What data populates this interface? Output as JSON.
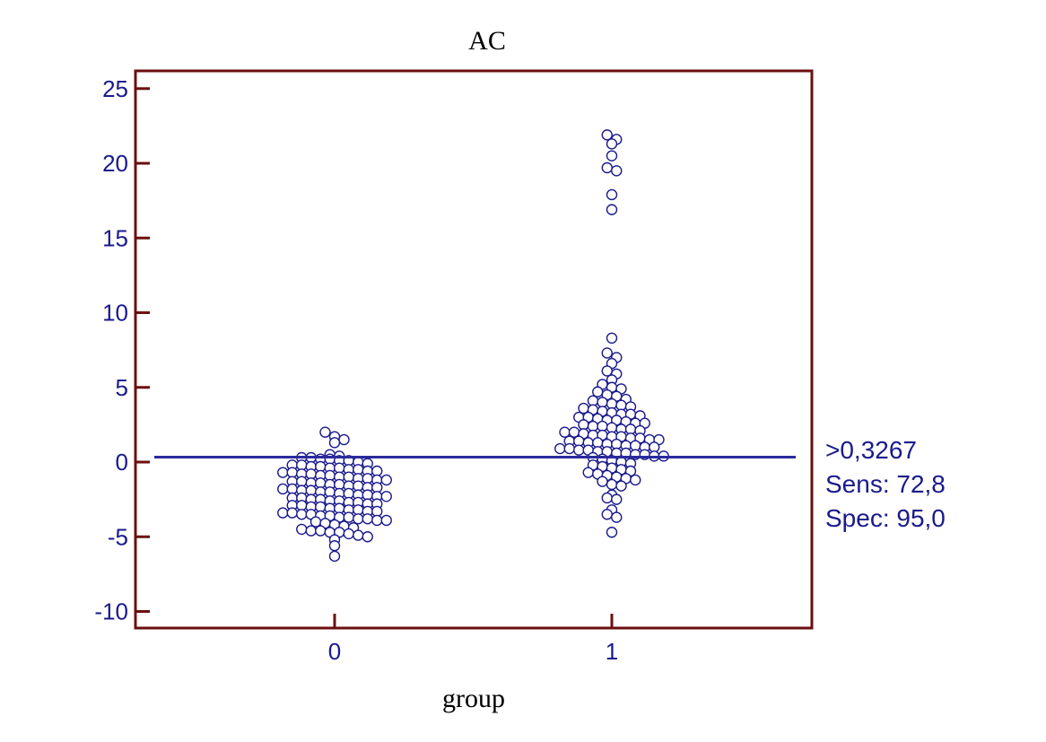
{
  "chart_data": {
    "type": "scatter",
    "title": "AC",
    "xlabel": "group",
    "ylabel": "",
    "ylim": [
      -11,
      26
    ],
    "yticks": [
      25,
      20,
      15,
      10,
      5,
      0,
      -5,
      -10
    ],
    "categories": [
      "0",
      "1"
    ],
    "grid": false,
    "cutoff": {
      "value": 0.3267,
      "label": ">0,3267"
    },
    "annotations": [
      ">0,3267",
      "Sens: 72,8",
      "Spec: 95,0"
    ],
    "colors": {
      "frame": "#6b0f0f",
      "marker": "#1a1a8c",
      "cutoff_line": "#2b2b9c",
      "text": "#1a1a8c"
    },
    "series": [
      {
        "category": "0",
        "values": [
          2.0,
          1.7,
          1.5,
          1.3,
          0.5,
          0.4,
          0.3,
          0.3,
          0.2,
          0.2,
          0.1,
          0.1,
          0.0,
          -0.1,
          -0.2,
          -0.2,
          -0.3,
          -0.3,
          -0.4,
          -0.4,
          -0.5,
          -0.5,
          -0.6,
          -0.6,
          -0.7,
          -0.7,
          -0.8,
          -0.8,
          -0.9,
          -0.9,
          -1.0,
          -1.0,
          -1.1,
          -1.1,
          -1.2,
          -1.2,
          -1.3,
          -1.3,
          -1.4,
          -1.4,
          -1.5,
          -1.5,
          -1.6,
          -1.6,
          -1.7,
          -1.7,
          -1.8,
          -1.8,
          -1.9,
          -1.9,
          -2.0,
          -2.0,
          -2.1,
          -2.1,
          -2.2,
          -2.2,
          -2.3,
          -2.3,
          -2.4,
          -2.4,
          -2.5,
          -2.5,
          -2.6,
          -2.6,
          -2.7,
          -2.7,
          -2.8,
          -2.8,
          -2.9,
          -2.9,
          -3.0,
          -3.0,
          -3.1,
          -3.1,
          -3.2,
          -3.2,
          -3.3,
          -3.3,
          -3.4,
          -3.4,
          -3.5,
          -3.5,
          -3.6,
          -3.6,
          -3.7,
          -3.7,
          -3.8,
          -3.8,
          -3.9,
          -3.9,
          -4.0,
          -4.1,
          -4.2,
          -4.3,
          -4.4,
          -4.5,
          -4.6,
          -4.6,
          -4.7,
          -4.7,
          -4.8,
          -4.9,
          -5.0,
          -5.2,
          -5.6,
          -6.3
        ]
      },
      {
        "category": "1",
        "values": [
          21.9,
          21.6,
          21.3,
          20.5,
          19.7,
          19.5,
          17.9,
          16.9,
          8.3,
          7.3,
          7.0,
          6.6,
          6.1,
          5.9,
          5.5,
          5.2,
          5.0,
          4.9,
          4.7,
          4.5,
          4.4,
          4.2,
          4.1,
          4.0,
          3.9,
          3.8,
          3.7,
          3.6,
          3.5,
          3.4,
          3.3,
          3.2,
          3.2,
          3.1,
          3.0,
          3.0,
          2.9,
          2.8,
          2.8,
          2.7,
          2.6,
          2.6,
          2.5,
          2.4,
          2.4,
          2.3,
          2.2,
          2.2,
          2.1,
          2.0,
          2.0,
          1.9,
          1.8,
          1.8,
          1.7,
          1.7,
          1.6,
          1.6,
          1.5,
          1.5,
          1.4,
          1.4,
          1.3,
          1.3,
          1.2,
          1.2,
          1.1,
          1.1,
          1.0,
          1.0,
          0.9,
          0.9,
          0.8,
          0.8,
          0.7,
          0.7,
          0.6,
          0.6,
          0.5,
          0.5,
          0.4,
          0.4,
          0.3,
          0.2,
          0.1,
          0.0,
          -0.1,
          -0.2,
          -0.3,
          -0.4,
          -0.5,
          -0.6,
          -0.7,
          -0.8,
          -0.9,
          -1.0,
          -1.1,
          -1.2,
          -1.3,
          -1.5,
          -1.6,
          -2.2,
          -2.4,
          -2.5,
          -3.2,
          -3.5,
          -3.7,
          -4.7
        ]
      }
    ]
  }
}
